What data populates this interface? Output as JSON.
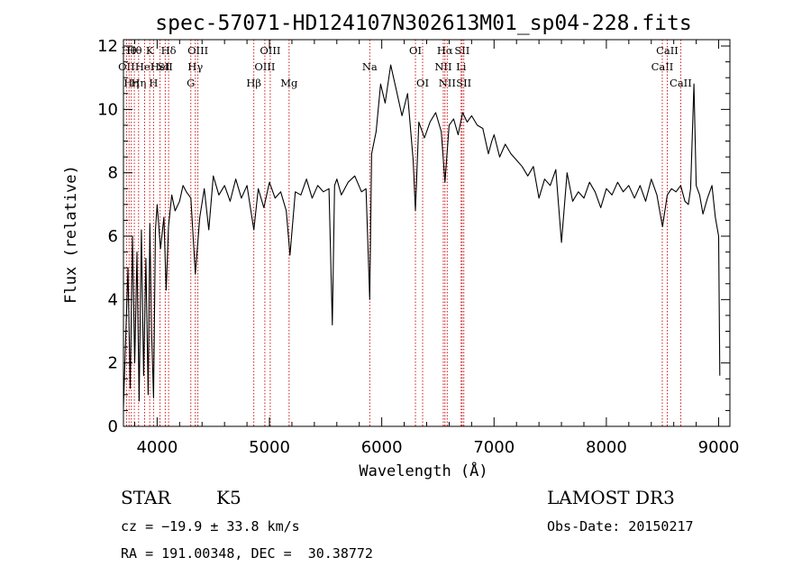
{
  "chart_data": {
    "type": "line",
    "title": "spec-57071-HD124107N302613M01_sp04-228.fits",
    "xlabel": "Wavelength (Å)",
    "ylabel": "Flux (relative)",
    "xlim": [
      3700,
      9100
    ],
    "ylim": [
      0,
      12.2
    ],
    "xticks": [
      4000,
      5000,
      6000,
      7000,
      8000,
      9000
    ],
    "yticks": [
      0,
      2,
      4,
      6,
      8,
      10,
      12
    ],
    "grid": false,
    "series": [
      {
        "name": "flux",
        "x": [
          3700,
          3720,
          3740,
          3760,
          3780,
          3800,
          3820,
          3840,
          3860,
          3880,
          3900,
          3920,
          3935,
          3950,
          3968,
          3985,
          4000,
          4030,
          4060,
          4080,
          4101,
          4130,
          4160,
          4200,
          4230,
          4260,
          4300,
          4340,
          4380,
          4420,
          4460,
          4500,
          4550,
          4600,
          4650,
          4700,
          4750,
          4800,
          4861,
          4900,
          4950,
          5000,
          5050,
          5100,
          5150,
          5183,
          5230,
          5280,
          5330,
          5380,
          5430,
          5480,
          5530,
          5560,
          5580,
          5600,
          5640,
          5700,
          5760,
          5820,
          5860,
          5893,
          5910,
          5950,
          5990,
          6030,
          6080,
          6130,
          6180,
          6230,
          6280,
          6300,
          6330,
          6380,
          6430,
          6480,
          6530,
          6563,
          6600,
          6640,
          6680,
          6720,
          6760,
          6800,
          6850,
          6900,
          6950,
          6980,
          7000,
          7050,
          7100,
          7150,
          7200,
          7250,
          7300,
          7350,
          7400,
          7450,
          7500,
          7550,
          7600,
          7650,
          7700,
          7750,
          7800,
          7850,
          7900,
          7950,
          8000,
          8050,
          8100,
          8150,
          8200,
          8250,
          8300,
          8350,
          8400,
          8450,
          8500,
          8542,
          8580,
          8620,
          8662,
          8700,
          8730,
          8750,
          8780,
          8800,
          8830,
          8860,
          8900,
          8940,
          8970,
          9000,
          9010
        ],
        "values": [
          0.6,
          2.8,
          5.0,
          1.2,
          6.0,
          2.0,
          5.5,
          0.8,
          6.2,
          1.6,
          5.3,
          1.0,
          6.4,
          3.0,
          0.9,
          6.2,
          7.0,
          5.6,
          6.6,
          4.3,
          6.3,
          7.3,
          6.8,
          7.1,
          7.6,
          7.4,
          7.2,
          4.8,
          6.6,
          7.5,
          6.2,
          7.9,
          7.3,
          7.6,
          7.1,
          7.8,
          7.2,
          7.6,
          6.2,
          7.5,
          6.9,
          7.7,
          7.2,
          7.4,
          6.8,
          5.4,
          7.4,
          7.3,
          7.8,
          7.2,
          7.6,
          7.4,
          7.5,
          3.2,
          7.6,
          7.8,
          7.3,
          7.7,
          7.9,
          7.4,
          7.5,
          4.0,
          8.6,
          9.3,
          10.8,
          10.2,
          11.4,
          10.6,
          9.8,
          10.5,
          8.4,
          6.8,
          9.6,
          9.1,
          9.6,
          9.9,
          9.3,
          7.7,
          9.5,
          9.7,
          9.2,
          9.9,
          9.6,
          9.8,
          9.5,
          9.4,
          8.6,
          9.0,
          9.2,
          8.5,
          8.9,
          8.6,
          8.4,
          8.2,
          7.9,
          8.2,
          7.2,
          7.8,
          7.6,
          8.1,
          5.8,
          8.0,
          7.1,
          7.4,
          7.2,
          7.7,
          7.4,
          6.9,
          7.5,
          7.3,
          7.7,
          7.4,
          7.6,
          7.2,
          7.6,
          7.1,
          7.8,
          7.3,
          6.3,
          7.3,
          7.5,
          7.4,
          7.6,
          7.1,
          7.0,
          7.5,
          10.8,
          7.6,
          7.3,
          6.7,
          7.2,
          7.6,
          6.6,
          6.0,
          1.6
        ]
      }
    ],
    "line_markers": [
      {
        "wave": 3727,
        "label": "OII",
        "row": 1
      },
      {
        "wave": 3750,
        "label": "Hθ",
        "row": 0
      },
      {
        "wave": 3770,
        "label": "Hη",
        "row": 2
      },
      {
        "wave": 3797,
        "label": "Hθ",
        "row": 0
      },
      {
        "wave": 3835,
        "label": "Hη",
        "row": 2
      },
      {
        "wave": 3889,
        "label": "HeI",
        "row": 1
      },
      {
        "wave": 3934,
        "label": "K",
        "row": 0
      },
      {
        "wave": 3968,
        "label": "H",
        "row": 2
      },
      {
        "wave": 4026,
        "label": "HeI",
        "row": 1
      },
      {
        "wave": 4072,
        "label": "SII",
        "row": 1
      },
      {
        "wave": 4102,
        "label": "Hδ",
        "row": 0
      },
      {
        "wave": 4300,
        "label": "G",
        "row": 2
      },
      {
        "wave": 4340,
        "label": "Hγ",
        "row": 1
      },
      {
        "wave": 4363,
        "label": "OIII",
        "row": 0
      },
      {
        "wave": 4861,
        "label": "Hβ",
        "row": 2
      },
      {
        "wave": 4959,
        "label": "OIII",
        "row": 1
      },
      {
        "wave": 5007,
        "label": "OIII",
        "row": 0
      },
      {
        "wave": 5175,
        "label": "Mg",
        "row": 2
      },
      {
        "wave": 5893,
        "label": "Na",
        "row": 1
      },
      {
        "wave": 6300,
        "label": "OI",
        "row": 0
      },
      {
        "wave": 6364,
        "label": "OI",
        "row": 2
      },
      {
        "wave": 6548,
        "label": "NII",
        "row": 1
      },
      {
        "wave": 6563,
        "label": "Hα",
        "row": 0
      },
      {
        "wave": 6583,
        "label": "NII",
        "row": 2
      },
      {
        "wave": 6707,
        "label": "Li",
        "row": 1
      },
      {
        "wave": 6716,
        "label": "SII",
        "row": 0
      },
      {
        "wave": 6731,
        "label": "SII",
        "row": 2
      },
      {
        "wave": 8498,
        "label": "CaII",
        "row": 1
      },
      {
        "wave": 8542,
        "label": "CaII",
        "row": 0
      },
      {
        "wave": 8662,
        "label": "CaII",
        "row": 2
      }
    ]
  },
  "info": {
    "class_label": "STAR",
    "subclass": "K5",
    "survey": "LAMOST DR3",
    "redshift": "cz = −19.9 ± 33.8 km/s",
    "obs_date": "Obs-Date: 20150217",
    "coords": "RA = 191.00348, DEC =  30.38772"
  },
  "colors": {
    "spectrum": "#000000",
    "line_marker": "#cc0000",
    "axes": "#000000",
    "background": "#ffffff"
  }
}
